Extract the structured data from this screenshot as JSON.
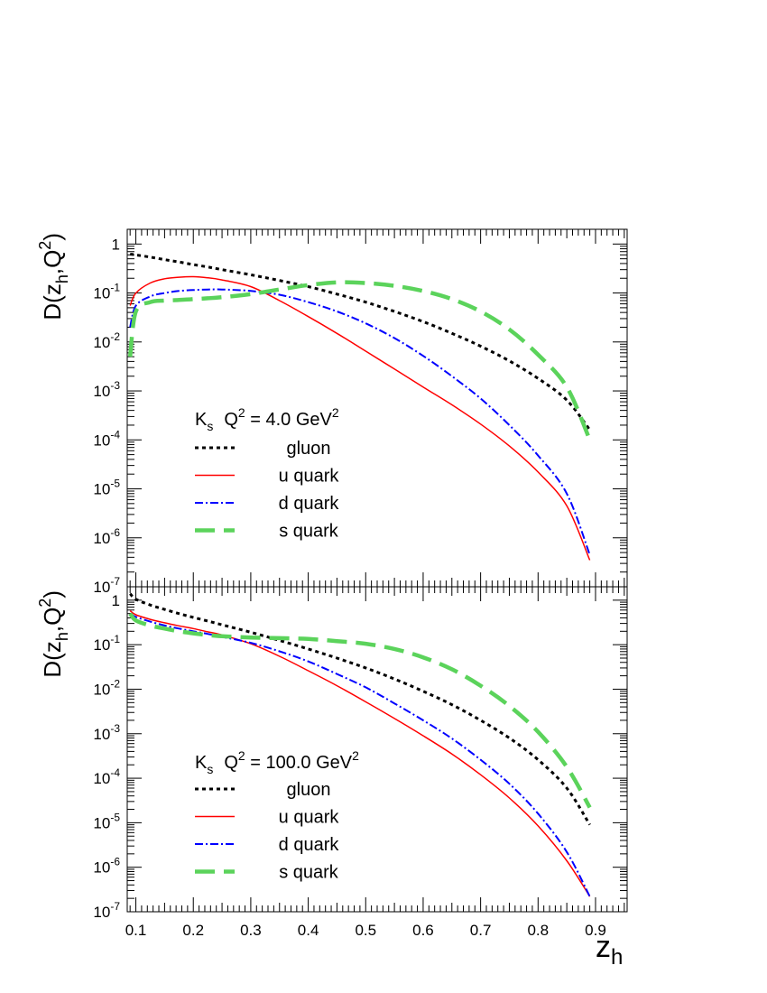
{
  "chart_data": [
    {
      "type": "line",
      "panel": "top",
      "xscale": "linear",
      "yscale": "log",
      "xlim": [
        0.085,
        0.955
      ],
      "ylim": [
        1e-07,
        2
      ],
      "ylabel": {
        "base": "D(z",
        "sub": "h",
        "mid": ",Q",
        "sup": "2",
        "end": ")"
      },
      "y_tick_labels": [
        {
          "base": "10",
          "exp": "-7",
          "value": 1e-07
        },
        {
          "base": "10",
          "exp": "-6",
          "value": 1e-06
        },
        {
          "base": "10",
          "exp": "-5",
          "value": 1e-05
        },
        {
          "base": "10",
          "exp": "-4",
          "value": 0.0001
        },
        {
          "base": "10",
          "exp": "-3",
          "value": 0.001
        },
        {
          "base": "10",
          "exp": "-2",
          "value": 0.01
        },
        {
          "base": "10",
          "exp": "-1",
          "value": 0.1
        },
        {
          "base": "1",
          "exp": "",
          "value": 1
        }
      ],
      "annotation": {
        "hadron": "K",
        "hadron_sub": "s",
        "q2_label": "Q",
        "q2_sup": "2",
        "q2_value": " = 4.0 GeV",
        "unit_sup": "2"
      },
      "x": [
        0.09,
        0.1,
        0.125,
        0.15,
        0.175,
        0.2,
        0.225,
        0.25,
        0.3,
        0.35,
        0.4,
        0.45,
        0.5,
        0.55,
        0.6,
        0.65,
        0.7,
        0.75,
        0.8,
        0.85,
        0.89
      ],
      "series": [
        {
          "name": "gluon",
          "values": [
            0.62,
            0.6,
            0.54,
            0.48,
            0.43,
            0.38,
            0.34,
            0.3,
            0.235,
            0.18,
            0.135,
            0.095,
            0.065,
            0.042,
            0.026,
            0.015,
            0.0082,
            0.0041,
            0.0018,
            0.00065,
            0.00016
          ]
        },
        {
          "name": "u quark",
          "values": [
            0.055,
            0.1,
            0.16,
            0.195,
            0.21,
            0.215,
            0.205,
            0.185,
            0.135,
            0.07,
            0.033,
            0.015,
            0.0065,
            0.0028,
            0.0012,
            0.00052,
            0.00021,
            7.5e-05,
            2.2e-05,
            4.5e-06,
            3.5e-07
          ]
        },
        {
          "name": "d quark",
          "values": [
            0.02,
            0.055,
            0.085,
            0.1,
            0.11,
            0.115,
            0.118,
            0.118,
            0.11,
            0.092,
            0.065,
            0.042,
            0.024,
            0.012,
            0.0052,
            0.002,
            0.0007,
            0.0002,
            4.8e-05,
            8e-06,
            4.5e-07
          ]
        },
        {
          "name": "s quark",
          "values": [
            0.005,
            0.042,
            0.065,
            0.07,
            0.072,
            0.075,
            0.078,
            0.082,
            0.095,
            0.118,
            0.145,
            0.165,
            0.16,
            0.14,
            0.11,
            0.075,
            0.042,
            0.018,
            0.0055,
            0.0012,
            0.0001
          ]
        }
      ]
    },
    {
      "type": "line",
      "panel": "bottom",
      "xscale": "linear",
      "yscale": "log",
      "xlim": [
        0.085,
        0.955
      ],
      "ylim": [
        1e-07,
        2
      ],
      "xlabel": {
        "base": "z",
        "sub": "h"
      },
      "ylabel": {
        "base": "D(z",
        "sub": "h",
        "mid": ",Q",
        "sup": "2",
        "end": ")"
      },
      "x_tick_labels": [
        "0.1",
        "0.2",
        "0.3",
        "0.4",
        "0.5",
        "0.6",
        "0.7",
        "0.8",
        "0.9"
      ],
      "x_ticks": [
        0.1,
        0.2,
        0.3,
        0.4,
        0.5,
        0.6,
        0.7,
        0.8,
        0.9
      ],
      "y_tick_labels": [
        {
          "base": "10",
          "exp": "-7",
          "value": 1e-07
        },
        {
          "base": "10",
          "exp": "-6",
          "value": 1e-06
        },
        {
          "base": "10",
          "exp": "-5",
          "value": 1e-05
        },
        {
          "base": "10",
          "exp": "-4",
          "value": 0.0001
        },
        {
          "base": "10",
          "exp": "-3",
          "value": 0.001
        },
        {
          "base": "10",
          "exp": "-2",
          "value": 0.01
        },
        {
          "base": "10",
          "exp": "-1",
          "value": 0.1
        },
        {
          "base": "1",
          "exp": "",
          "value": 1
        }
      ],
      "annotation": {
        "hadron": "K",
        "hadron_sub": "s",
        "q2_label": "Q",
        "q2_sup": "2",
        "q2_value": " = 100.0 GeV",
        "unit_sup": "2"
      },
      "x": [
        0.09,
        0.1,
        0.125,
        0.15,
        0.175,
        0.2,
        0.225,
        0.25,
        0.3,
        0.35,
        0.4,
        0.45,
        0.5,
        0.55,
        0.6,
        0.65,
        0.7,
        0.75,
        0.8,
        0.85,
        0.89
      ],
      "series": [
        {
          "name": "gluon",
          "values": [
            1.4,
            1.05,
            0.78,
            0.62,
            0.5,
            0.41,
            0.34,
            0.28,
            0.19,
            0.125,
            0.08,
            0.05,
            0.03,
            0.017,
            0.009,
            0.0045,
            0.002,
            0.0008,
            0.00026,
            6e-05,
            9e-06
          ]
        },
        {
          "name": "u quark",
          "values": [
            0.58,
            0.47,
            0.37,
            0.31,
            0.265,
            0.23,
            0.195,
            0.165,
            0.105,
            0.055,
            0.026,
            0.012,
            0.0052,
            0.0022,
            0.0009,
            0.00035,
            0.00012,
            3.6e-05,
            8.5e-06,
            1.4e-06,
            2.2e-07
          ]
        },
        {
          "name": "d quark",
          "values": [
            0.5,
            0.42,
            0.33,
            0.27,
            0.23,
            0.2,
            0.175,
            0.15,
            0.11,
            0.071,
            0.042,
            0.022,
            0.011,
            0.0048,
            0.002,
            0.00078,
            0.00026,
            7.5e-05,
            1.6e-05,
            2.2e-06,
            2.2e-07
          ]
        },
        {
          "name": "s quark",
          "values": [
            0.5,
            0.35,
            0.27,
            0.23,
            0.2,
            0.18,
            0.165,
            0.155,
            0.145,
            0.14,
            0.135,
            0.12,
            0.105,
            0.08,
            0.052,
            0.028,
            0.012,
            0.0042,
            0.0011,
            0.00018,
            2.2e-05
          ]
        }
      ]
    }
  ]
}
